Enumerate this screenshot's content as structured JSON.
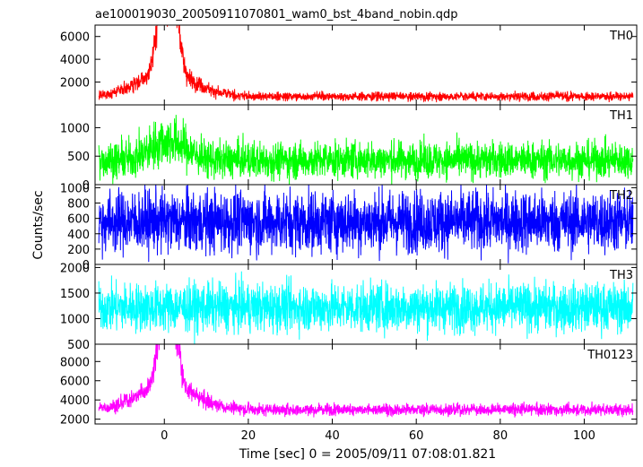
{
  "chart_data": {
    "type": "line",
    "title": "ae100019030_20050911070801_wam0_bst_4band_nobin.qdp",
    "xlabel": "Time [sec] 0 = 2005/09/11 07:08:01.821",
    "ylabel": "Counts/sec",
    "xlim": [
      -16.5,
      112.5
    ],
    "xticks": [
      0,
      20,
      40,
      60,
      80,
      100
    ],
    "grid": false,
    "panels": [
      {
        "name": "TH0",
        "color": "#ff0000",
        "ylim": [
          0,
          7000
        ],
        "yticks": [
          2000,
          4000,
          6000
        ],
        "baseline": 750,
        "noise": 280,
        "burst": [
          {
            "t": -0.5,
            "peak": 7000,
            "width": 1.3
          },
          {
            "t": 2.5,
            "peak": 6600,
            "width": 1.1
          },
          {
            "t": 0.5,
            "peak": 2200,
            "width": 6.5
          }
        ],
        "samples": [
          {
            "t": -15,
            "v": 700
          },
          {
            "t": -10,
            "v": 800
          },
          {
            "t": -5,
            "v": 1200
          },
          {
            "t": -2,
            "v": 3500
          },
          {
            "t": 0,
            "v": 7000
          },
          {
            "t": 1,
            "v": 3000
          },
          {
            "t": 2,
            "v": 6900
          },
          {
            "t": 4,
            "v": 3000
          },
          {
            "t": 6,
            "v": 1500
          },
          {
            "t": 10,
            "v": 900
          },
          {
            "t": 20,
            "v": 800
          },
          {
            "t": 40,
            "v": 750
          },
          {
            "t": 60,
            "v": 750
          },
          {
            "t": 80,
            "v": 720
          },
          {
            "t": 100,
            "v": 720
          },
          {
            "t": 112,
            "v": 700
          }
        ]
      },
      {
        "name": "TH1",
        "color": "#00ff00",
        "ylim": [
          0,
          1400
        ],
        "yticks": [
          0,
          500,
          1000
        ],
        "baseline": 430,
        "noise": 230,
        "burst": [
          {
            "t": 1,
            "peak": 350,
            "width": 4
          }
        ],
        "samples": [
          {
            "t": -15,
            "v": 420
          },
          {
            "t": 0,
            "v": 650
          },
          {
            "t": 2,
            "v": 900
          },
          {
            "t": 10,
            "v": 450
          },
          {
            "t": 40,
            "v": 420
          },
          {
            "t": 80,
            "v": 420
          },
          {
            "t": 112,
            "v": 400
          }
        ]
      },
      {
        "name": "TH2",
        "color": "#0000ff",
        "ylim": [
          0,
          1040
        ],
        "yticks": [
          0,
          200,
          400,
          600,
          800,
          1000
        ],
        "baseline": 560,
        "noise": 290,
        "burst": [],
        "samples": [
          {
            "t": -15,
            "v": 560
          },
          {
            "t": 0,
            "v": 570
          },
          {
            "t": 40,
            "v": 560
          },
          {
            "t": 80,
            "v": 555
          },
          {
            "t": 112,
            "v": 560
          }
        ]
      },
      {
        "name": "TH3",
        "color": "#00ffff",
        "ylim": [
          500,
          2060
        ],
        "yticks": [
          500,
          1000,
          1500,
          2000
        ],
        "baseline": 1220,
        "noise": 340,
        "burst": [],
        "samples": [
          {
            "t": -15,
            "v": 1220
          },
          {
            "t": 0,
            "v": 1230
          },
          {
            "t": 40,
            "v": 1220
          },
          {
            "t": 80,
            "v": 1210
          },
          {
            "t": 112,
            "v": 1220
          }
        ]
      },
      {
        "name": "TH0123",
        "color": "#ff00ff",
        "ylim": [
          1500,
          9800
        ],
        "yticks": [
          2000,
          4000,
          6000,
          8000
        ],
        "baseline": 3000,
        "noise": 450,
        "burst": [
          {
            "t": -0.5,
            "peak": 6500,
            "width": 1.3
          },
          {
            "t": 2.5,
            "peak": 6200,
            "width": 1.1
          },
          {
            "t": 0.5,
            "peak": 2600,
            "width": 6.5
          }
        ],
        "samples": [
          {
            "t": -15,
            "v": 2900
          },
          {
            "t": -5,
            "v": 3800
          },
          {
            "t": -2,
            "v": 6500
          },
          {
            "t": 0,
            "v": 9500
          },
          {
            "t": 1,
            "v": 7500
          },
          {
            "t": 2,
            "v": 9500
          },
          {
            "t": 4,
            "v": 6000
          },
          {
            "t": 8,
            "v": 3300
          },
          {
            "t": 20,
            "v": 3200
          },
          {
            "t": 60,
            "v": 3000
          },
          {
            "t": 100,
            "v": 2900
          },
          {
            "t": 112,
            "v": 2900
          }
        ]
      }
    ]
  }
}
